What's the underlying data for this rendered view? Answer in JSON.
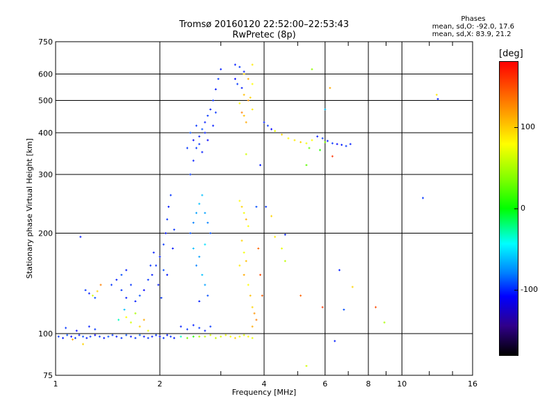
{
  "chart_data": {
    "type": "scatter",
    "title": "Tromsø 20160120 22:52:00–22:53:43",
    "subtitle": "RwPretec (8p)",
    "xlabel": "Frequency [MHz]",
    "ylabel": "Stationary phase Virtual Height [km]",
    "x_scale": "log",
    "y_scale": "log",
    "xlim": [
      1,
      16
    ],
    "ylim": [
      75,
      750
    ],
    "x_ticks": [
      1,
      2,
      4,
      6,
      8,
      10,
      16
    ],
    "y_ticks": [
      75,
      100,
      200,
      300,
      400,
      500,
      600,
      750
    ],
    "grid": true,
    "legend": {
      "title": "Phases",
      "lines": [
        "mean, sd,O: -92.0, 17.6",
        "mean, sd,X: 83.9, 21.2"
      ]
    },
    "colorbar": {
      "label": "[deg]",
      "ticks": [
        100,
        0,
        -100
      ],
      "range": [
        -180,
        180
      ]
    },
    "series": [
      {
        "values_note": "",
        "points": [
          [
            1.02,
            98,
            -95
          ],
          [
            1.05,
            97,
            -100
          ],
          [
            1.08,
            99,
            -90
          ],
          [
            1.11,
            98,
            -105
          ],
          [
            1.14,
            97,
            -95
          ],
          [
            1.17,
            99,
            -100
          ],
          [
            1.2,
            98,
            -90
          ],
          [
            1.23,
            97,
            -100
          ],
          [
            1.26,
            98,
            -95
          ],
          [
            1.3,
            99,
            -105
          ],
          [
            1.34,
            98,
            -95
          ],
          [
            1.38,
            97,
            -100
          ],
          [
            1.42,
            98,
            -90
          ],
          [
            1.46,
            99,
            -95
          ],
          [
            1.5,
            98,
            -100
          ],
          [
            1.55,
            97,
            -95
          ],
          [
            1.6,
            99,
            -90
          ],
          [
            1.65,
            98,
            -100
          ],
          [
            1.7,
            97,
            -95
          ],
          [
            1.75,
            99,
            -85
          ],
          [
            1.8,
            98,
            -100
          ],
          [
            1.85,
            97,
            -95
          ],
          [
            1.9,
            98,
            -100
          ],
          [
            1.95,
            99,
            -95
          ],
          [
            2.0,
            98,
            -105
          ],
          [
            2.05,
            97,
            -95
          ],
          [
            2.1,
            99,
            -100
          ],
          [
            2.15,
            98,
            -95
          ],
          [
            2.2,
            97,
            -100
          ],
          [
            1.12,
            96,
            120
          ],
          [
            1.2,
            93,
            110
          ],
          [
            1.25,
            105,
            -100
          ],
          [
            1.07,
            104,
            -95
          ],
          [
            1.3,
            103,
            -95
          ],
          [
            1.15,
            102,
            -105
          ],
          [
            1.22,
            135,
            -95
          ],
          [
            1.25,
            132,
            -100
          ],
          [
            1.28,
            130,
            80
          ],
          [
            1.32,
            134,
            110
          ],
          [
            1.35,
            140,
            130
          ],
          [
            1.3,
            128,
            -90
          ],
          [
            1.18,
            195,
            -100
          ],
          [
            1.45,
            140,
            -95
          ],
          [
            1.5,
            145,
            -100
          ],
          [
            1.55,
            150,
            -90
          ],
          [
            1.6,
            155,
            -100
          ],
          [
            1.55,
            135,
            -95
          ],
          [
            1.6,
            128,
            -100
          ],
          [
            1.65,
            140,
            -95
          ],
          [
            1.7,
            125,
            -100
          ],
          [
            1.75,
            130,
            -90
          ],
          [
            1.8,
            135,
            -105
          ],
          [
            1.85,
            145,
            -95
          ],
          [
            1.9,
            150,
            -100
          ],
          [
            1.95,
            160,
            -95
          ],
          [
            2.0,
            170,
            -100
          ],
          [
            2.05,
            185,
            -95
          ],
          [
            2.08,
            200,
            -100
          ],
          [
            2.1,
            220,
            -95
          ],
          [
            2.12,
            240,
            -100
          ],
          [
            2.15,
            260,
            -95
          ],
          [
            1.98,
            140,
            -100
          ],
          [
            2.02,
            128,
            -95
          ],
          [
            2.05,
            155,
            -90
          ],
          [
            1.92,
            175,
            -100
          ],
          [
            1.88,
            160,
            -95
          ],
          [
            2.18,
            180,
            -100
          ],
          [
            2.2,
            205,
            -95
          ],
          [
            2.1,
            150,
            -100
          ],
          [
            1.6,
            112,
            100
          ],
          [
            1.65,
            108,
            80
          ],
          [
            1.7,
            115,
            60
          ],
          [
            1.75,
            105,
            110
          ],
          [
            1.8,
            110,
            120
          ],
          [
            1.85,
            102,
            90
          ],
          [
            1.58,
            118,
            -60
          ],
          [
            1.52,
            110,
            -30
          ],
          [
            2.3,
            105,
            -100
          ],
          [
            2.4,
            103,
            -95
          ],
          [
            2.5,
            106,
            -100
          ],
          [
            2.6,
            104,
            -95
          ],
          [
            2.7,
            102,
            -100
          ],
          [
            2.8,
            105,
            -95
          ],
          [
            2.3,
            98,
            -30
          ],
          [
            2.4,
            97,
            40
          ],
          [
            2.5,
            98,
            10
          ],
          [
            2.45,
            300,
            -95
          ],
          [
            2.5,
            330,
            -100
          ],
          [
            2.55,
            360,
            -95
          ],
          [
            2.6,
            390,
            -100
          ],
          [
            2.65,
            410,
            -90
          ],
          [
            2.7,
            430,
            -100
          ],
          [
            2.75,
            450,
            -95
          ],
          [
            2.8,
            470,
            -100
          ],
          [
            2.85,
            500,
            -95
          ],
          [
            2.9,
            540,
            -100
          ],
          [
            2.95,
            580,
            -95
          ],
          [
            3.0,
            620,
            -100
          ],
          [
            2.5,
            380,
            -105
          ],
          [
            2.6,
            370,
            -95
          ],
          [
            2.7,
            400,
            -100
          ],
          [
            2.55,
            420,
            -95
          ],
          [
            2.65,
            350,
            -100
          ],
          [
            2.75,
            380,
            -105
          ],
          [
            2.4,
            360,
            -95
          ],
          [
            2.45,
            400,
            -90
          ],
          [
            2.85,
            420,
            -100
          ],
          [
            2.9,
            460,
            -95
          ],
          [
            2.45,
            200,
            -90
          ],
          [
            2.5,
            215,
            -80
          ],
          [
            2.55,
            230,
            -70
          ],
          [
            2.6,
            245,
            -60
          ],
          [
            2.65,
            260,
            -60
          ],
          [
            2.7,
            230,
            -70
          ],
          [
            2.75,
            215,
            -80
          ],
          [
            2.8,
            200,
            -90
          ],
          [
            2.5,
            180,
            -60
          ],
          [
            2.6,
            170,
            -70
          ],
          [
            2.7,
            185,
            -50
          ],
          [
            2.55,
            160,
            -80
          ],
          [
            2.65,
            150,
            -60
          ],
          [
            2.7,
            140,
            -70
          ],
          [
            2.75,
            130,
            -90
          ],
          [
            2.6,
            125,
            -100
          ],
          [
            2.6,
            98,
            60
          ],
          [
            2.7,
            98,
            70
          ],
          [
            2.8,
            99,
            80
          ],
          [
            2.9,
            97,
            75
          ],
          [
            3.0,
            98,
            85
          ],
          [
            3.1,
            99,
            90
          ],
          [
            3.2,
            98,
            100
          ],
          [
            3.3,
            97,
            110
          ],
          [
            3.4,
            98,
            95
          ],
          [
            3.5,
            99,
            85
          ],
          [
            3.6,
            98,
            100
          ],
          [
            3.7,
            97,
            90
          ],
          [
            3.3,
            640,
            -100
          ],
          [
            3.4,
            630,
            -95
          ],
          [
            3.5,
            610,
            -100
          ],
          [
            3.3,
            580,
            -105
          ],
          [
            3.35,
            560,
            -95
          ],
          [
            3.45,
            545,
            -100
          ],
          [
            3.5,
            600,
            110
          ],
          [
            3.6,
            580,
            120
          ],
          [
            3.7,
            560,
            100
          ],
          [
            3.5,
            520,
            115
          ],
          [
            3.6,
            500,
            125
          ],
          [
            3.7,
            470,
            105
          ],
          [
            3.5,
            450,
            115
          ],
          [
            3.55,
            430,
            120
          ],
          [
            3.65,
            510,
            110
          ],
          [
            3.4,
            490,
            100
          ],
          [
            3.45,
            460,
            130
          ],
          [
            3.7,
            640,
            105
          ],
          [
            3.4,
            250,
            100
          ],
          [
            3.45,
            240,
            110
          ],
          [
            3.5,
            230,
            95
          ],
          [
            3.55,
            220,
            120
          ],
          [
            3.6,
            210,
            100
          ],
          [
            3.45,
            190,
            110
          ],
          [
            3.5,
            175,
            95
          ],
          [
            3.55,
            165,
            115
          ],
          [
            3.4,
            160,
            105
          ],
          [
            3.5,
            150,
            120
          ],
          [
            3.6,
            140,
            100
          ],
          [
            3.65,
            130,
            115
          ],
          [
            3.7,
            120,
            110
          ],
          [
            3.75,
            115,
            125
          ],
          [
            3.7,
            105,
            120
          ],
          [
            3.8,
            110,
            130
          ],
          [
            3.55,
            345,
            80
          ],
          [
            3.85,
            180,
            140
          ],
          [
            3.9,
            150,
            150
          ],
          [
            3.95,
            130,
            145
          ],
          [
            4.0,
            430,
            -100
          ],
          [
            4.1,
            420,
            -95
          ],
          [
            4.2,
            410,
            -105
          ],
          [
            4.3,
            405,
            90
          ],
          [
            4.5,
            395,
            110
          ],
          [
            4.7,
            385,
            100
          ],
          [
            4.9,
            380,
            105
          ],
          [
            5.1,
            375,
            110
          ],
          [
            5.3,
            372,
            95
          ],
          [
            5.5,
            380,
            100
          ],
          [
            5.7,
            390,
            -100
          ],
          [
            5.9,
            385,
            -95
          ],
          [
            6.1,
            378,
            -100
          ],
          [
            6.3,
            372,
            -95
          ],
          [
            6.5,
            370,
            -105
          ],
          [
            6.7,
            368,
            -100
          ],
          [
            6.9,
            365,
            -95
          ],
          [
            7.1,
            370,
            -100
          ],
          [
            5.4,
            360,
            30
          ],
          [
            5.8,
            355,
            10
          ],
          [
            6.0,
            375,
            40
          ],
          [
            3.9,
            320,
            -100
          ],
          [
            4.05,
            240,
            -95
          ],
          [
            4.2,
            225,
            110
          ],
          [
            4.3,
            195,
            105
          ],
          [
            4.5,
            180,
            90
          ],
          [
            4.6,
            165,
            70
          ],
          [
            5.5,
            620,
            50
          ],
          [
            6.2,
            545,
            120
          ],
          [
            6.0,
            470,
            -60
          ],
          [
            5.1,
            130,
            140
          ],
          [
            5.9,
            120,
            160
          ],
          [
            6.4,
            95,
            -100
          ],
          [
            6.8,
            118,
            -90
          ],
          [
            6.6,
            155,
            -100
          ],
          [
            7.2,
            138,
            110
          ],
          [
            8.4,
            120,
            150
          ],
          [
            8.9,
            108,
            60
          ],
          [
            5.3,
            320,
            30
          ],
          [
            6.3,
            340,
            160
          ],
          [
            11.5,
            255,
            -95
          ],
          [
            12.6,
            520,
            105
          ],
          [
            12.7,
            505,
            -100
          ],
          [
            5.3,
            80,
            80
          ],
          [
            3.8,
            240,
            -90
          ],
          [
            4.6,
            198,
            -100
          ]
        ]
      }
    ]
  }
}
